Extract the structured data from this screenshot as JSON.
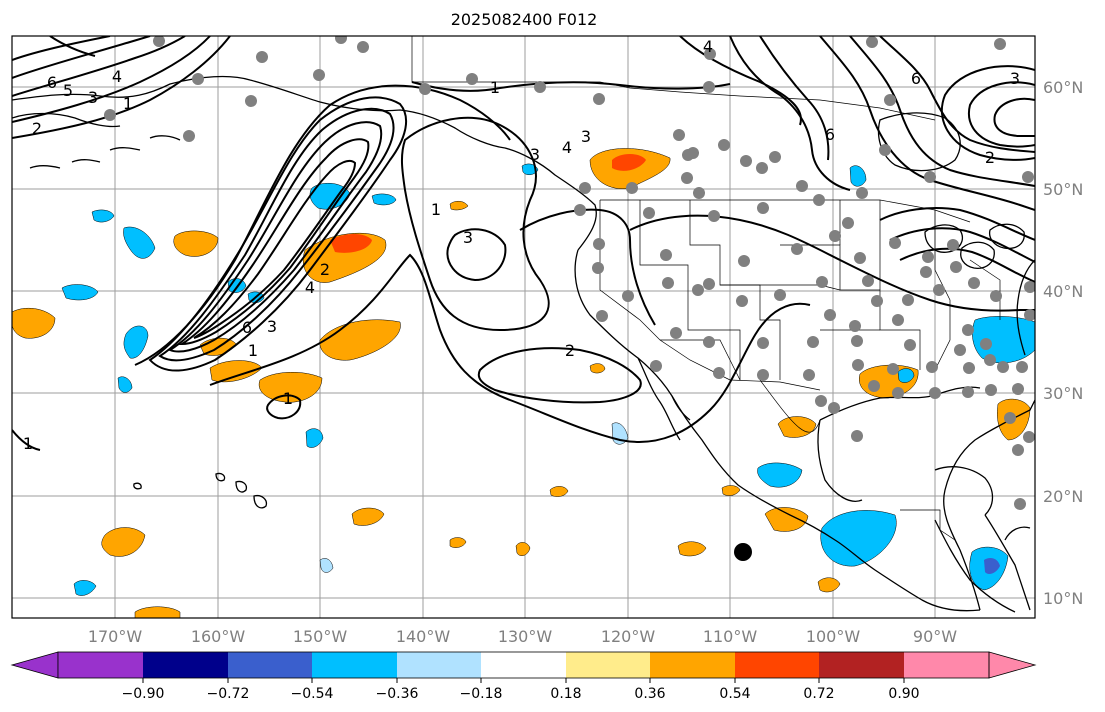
{
  "title": "2025082400 F012",
  "map": {
    "longitude_labels": [
      "170°W",
      "160°W",
      "150°W",
      "140°W",
      "130°W",
      "120°W",
      "110°W",
      "100°W",
      "90°W"
    ],
    "latitude_labels": [
      "60°N",
      "50°N",
      "40°N",
      "30°N",
      "20°N",
      "10°N"
    ],
    "contour_labels": [
      "6",
      "5",
      "4",
      "3",
      "2",
      "1",
      "6",
      "4",
      "3",
      "1",
      "4",
      "3",
      "2",
      "1",
      "1",
      "3",
      "2",
      "1",
      "6",
      "4",
      "3",
      "2",
      "1",
      "6",
      "3"
    ],
    "colors": {
      "contour": "#000000",
      "coast": "#000000",
      "grid": "#9e9e9e",
      "station_marker": "#808080",
      "storm_marker": "#000000"
    }
  },
  "colorbar": {
    "ticks": [
      "−0.90",
      "−0.72",
      "−0.54",
      "−0.36",
      "−0.18",
      "0.18",
      "0.36",
      "0.54",
      "0.72",
      "0.90"
    ],
    "colors": [
      "#9932cc",
      "#00008b",
      "#3a5fcd",
      "#00bfff",
      "#b0e2ff",
      "#ffffff",
      "#ffec8b",
      "#ffa500",
      "#ff4500",
      "#b22222",
      "#ff88aa"
    ]
  }
}
